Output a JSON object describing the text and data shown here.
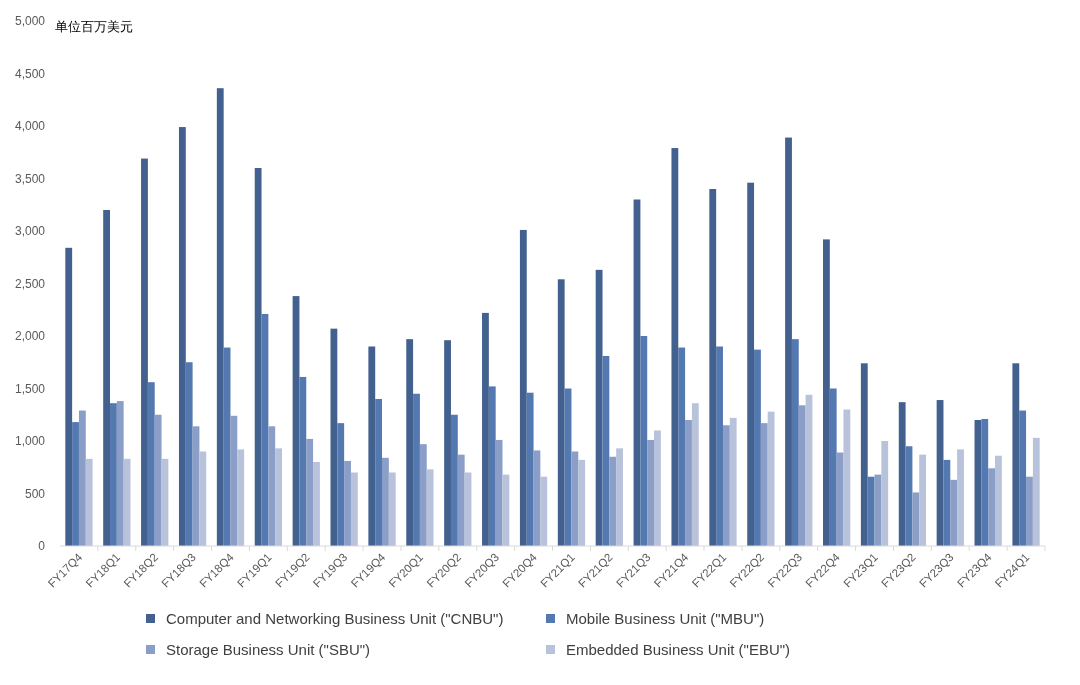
{
  "chart_data": {
    "type": "bar",
    "ylabel": "单位百万美元",
    "categories": [
      "FY17Q4",
      "FY18Q1",
      "FY18Q2",
      "FY18Q3",
      "FY18Q4",
      "FY19Q1",
      "FY19Q2",
      "FY19Q3",
      "FY19Q4",
      "FY20Q1",
      "FY20Q2",
      "FY20Q3",
      "FY20Q4",
      "FY21Q1",
      "FY21Q2",
      "FY21Q3",
      "FY21Q4",
      "FY22Q1",
      "FY22Q2",
      "FY22Q3",
      "FY22Q4",
      "FY23Q1",
      "FY23Q2",
      "FY23Q3",
      "FY23Q4",
      "FY24Q1"
    ],
    "series": [
      {
        "name": "Computer and Networking Business Unit (\"CNBU\")",
        "color": "#42618f",
        "values": [
          2840,
          3200,
          3690,
          3990,
          4360,
          3600,
          2380,
          2070,
          1900,
          1970,
          1960,
          2220,
          3010,
          2540,
          2630,
          3300,
          3790,
          3400,
          3460,
          3890,
          2920,
          1740,
          1370,
          1390,
          1200,
          1740
        ]
      },
      {
        "name": "Mobile Business Unit (\"MBU\")",
        "color": "#5478b0",
        "values": [
          1180,
          1360,
          1560,
          1750,
          1890,
          2210,
          1610,
          1170,
          1400,
          1450,
          1250,
          1520,
          1460,
          1500,
          1810,
          2000,
          1890,
          1900,
          1870,
          1970,
          1500,
          660,
          950,
          820,
          1210,
          1290
        ]
      },
      {
        "name": "Storage Business Unit (\"SBU\")",
        "color": "#8a9ec8",
        "values": [
          1290,
          1380,
          1250,
          1140,
          1240,
          1140,
          1020,
          810,
          840,
          970,
          870,
          1010,
          910,
          900,
          850,
          1010,
          1200,
          1150,
          1170,
          1340,
          890,
          680,
          510,
          630,
          740,
          660
        ]
      },
      {
        "name": "Embedded Business Unit (\"EBU\")",
        "color": "#b8c2db",
        "values": [
          830,
          830,
          830,
          900,
          920,
          930,
          800,
          700,
          700,
          730,
          700,
          680,
          660,
          820,
          930,
          1100,
          1360,
          1220,
          1280,
          1440,
          1300,
          1000,
          870,
          920,
          860,
          1030
        ]
      }
    ],
    "ylim": [
      0,
      5000
    ],
    "yticks": [
      {
        "value": 0,
        "label": "0"
      },
      {
        "value": 500,
        "label": "500"
      },
      {
        "value": 1000,
        "label": "1,000"
      },
      {
        "value": 1500,
        "label": "1,500"
      },
      {
        "value": 2000,
        "label": "2,000"
      },
      {
        "value": 2500,
        "label": "2,500"
      },
      {
        "value": 3000,
        "label": "3,000"
      },
      {
        "value": 3500,
        "label": "3,500"
      },
      {
        "value": 4000,
        "label": "4,000"
      },
      {
        "value": 4500,
        "label": "4,500"
      },
      {
        "value": 5000,
        "label": "5,000"
      }
    ],
    "grid": false,
    "legend": "bottom"
  }
}
